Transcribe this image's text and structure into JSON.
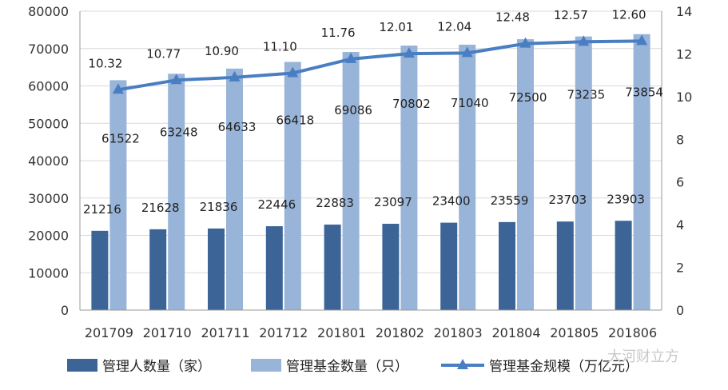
{
  "chart_data": {
    "type": "bar+line",
    "categories": [
      "201709",
      "201710",
      "201711",
      "201712",
      "201801",
      "201802",
      "201803",
      "201804",
      "201805",
      "201806"
    ],
    "series": [
      {
        "name": "管理人数量（家）",
        "type": "bar",
        "axis": "left",
        "color": "#3c6497",
        "values": [
          21216,
          21628,
          21836,
          22446,
          22883,
          23097,
          23400,
          23559,
          23703,
          23903
        ]
      },
      {
        "name": "管理基金数量（只）",
        "type": "bar",
        "axis": "left",
        "color": "#98b4d8",
        "values": [
          61522,
          63248,
          64633,
          66418,
          69086,
          70802,
          71040,
          72500,
          73235,
          73854
        ]
      },
      {
        "name": "管理基金规模（万亿元）",
        "type": "line",
        "axis": "right",
        "color": "#4a7ec2",
        "values": [
          10.32,
          10.77,
          10.9,
          11.1,
          11.76,
          12.01,
          12.04,
          12.48,
          12.57,
          12.6
        ]
      }
    ],
    "left_axis": {
      "min": 0,
      "max": 80000,
      "step": 10000
    },
    "right_axis": {
      "min": 0,
      "max": 14,
      "step": 2
    },
    "grid": true,
    "legend_position": "bottom"
  },
  "watermark": "大河财立方"
}
